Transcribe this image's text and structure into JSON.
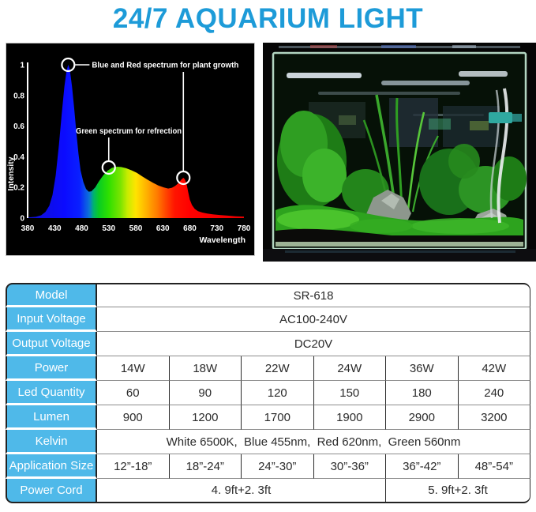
{
  "title": "24/7 AQUARIUM LIGHT",
  "colors": {
    "title_blue": "#1D9BD8",
    "label_blue": "#4FB9E9",
    "table_outer_border": "#222222",
    "table_row_line": "#8C8C8C",
    "chart_background": "#000000",
    "chart_text": "#FFFFFF"
  },
  "photo": {
    "name": "planted-aquarium-tank-photo"
  },
  "chart_data": {
    "type": "area",
    "title": "",
    "xlabel": "Wavelength",
    "ylabel": "Intensity",
    "xlim": [
      380,
      780
    ],
    "ylim": [
      0,
      1
    ],
    "x_ticks": [
      380,
      430,
      480,
      530,
      580,
      630,
      680,
      730,
      780
    ],
    "y_ticks": [
      "0",
      "0.2",
      "0.4",
      "0.6",
      "0.8",
      "1"
    ],
    "grid": false,
    "legend": false,
    "series": [
      {
        "name": "led-spectrum",
        "points": [
          [
            380,
            0.004
          ],
          [
            395,
            0.008
          ],
          [
            405,
            0.018
          ],
          [
            413,
            0.04
          ],
          [
            420,
            0.08
          ],
          [
            426,
            0.15
          ],
          [
            432,
            0.28
          ],
          [
            438,
            0.48
          ],
          [
            443,
            0.68
          ],
          [
            448,
            0.86
          ],
          [
            452,
            0.96
          ],
          [
            455,
            1.0
          ],
          [
            458,
            0.97
          ],
          [
            462,
            0.86
          ],
          [
            466,
            0.72
          ],
          [
            470,
            0.56
          ],
          [
            474,
            0.42
          ],
          [
            478,
            0.31
          ],
          [
            483,
            0.235
          ],
          [
            488,
            0.19
          ],
          [
            493,
            0.172
          ],
          [
            498,
            0.175
          ],
          [
            505,
            0.2
          ],
          [
            512,
            0.24
          ],
          [
            520,
            0.28
          ],
          [
            528,
            0.31
          ],
          [
            536,
            0.328
          ],
          [
            545,
            0.335
          ],
          [
            553,
            0.333
          ],
          [
            562,
            0.325
          ],
          [
            572,
            0.312
          ],
          [
            582,
            0.295
          ],
          [
            592,
            0.272
          ],
          [
            602,
            0.25
          ],
          [
            612,
            0.23
          ],
          [
            622,
            0.212
          ],
          [
            632,
            0.2
          ],
          [
            640,
            0.193
          ],
          [
            647,
            0.198
          ],
          [
            653,
            0.21
          ],
          [
            659,
            0.228
          ],
          [
            664,
            0.25
          ],
          [
            668,
            0.263
          ],
          [
            671,
            0.252
          ],
          [
            674,
            0.222
          ],
          [
            677,
            0.17
          ],
          [
            680,
            0.12
          ],
          [
            684,
            0.085
          ],
          [
            689,
            0.06
          ],
          [
            695,
            0.045
          ],
          [
            703,
            0.036
          ],
          [
            712,
            0.03
          ],
          [
            722,
            0.025
          ],
          [
            735,
            0.02
          ],
          [
            750,
            0.016
          ],
          [
            765,
            0.012
          ],
          [
            780,
            0.01
          ]
        ]
      }
    ],
    "spectrum_gradient_stops": [
      [
        "#1010CE",
        0
      ],
      [
        "#0B0BFF",
        0.17
      ],
      [
        "#0920FF",
        0.24
      ],
      [
        "#0C74D8",
        0.285
      ],
      [
        "#00B46E",
        0.305
      ],
      [
        "#0ACC22",
        0.33
      ],
      [
        "#2FE000",
        0.375
      ],
      [
        "#7CE400",
        0.43
      ],
      [
        "#C8EC00",
        0.462
      ],
      [
        "#FFE400",
        0.5
      ],
      [
        "#FFB000",
        0.55
      ],
      [
        "#FF7A00",
        0.6
      ],
      [
        "#FF4400",
        0.64
      ],
      [
        "#FF1400",
        0.68
      ],
      [
        "#FF0000",
        0.75
      ],
      [
        "#E80000",
        1
      ]
    ],
    "annotations": [
      {
        "text": "Blue and Red spectrum for plant growth",
        "anchors": [
          {
            "wavelength": 455,
            "intensity": 1.0
          },
          {
            "wavelength": 668,
            "intensity": 0.263
          }
        ]
      },
      {
        "text": "Green spectrum for refrection",
        "anchors": [
          {
            "wavelength": 530,
            "intensity": 0.33
          }
        ]
      }
    ]
  },
  "table": {
    "rows": [
      {
        "label": "Model",
        "cells": [
          {
            "text": "SR-618",
            "span": 6
          }
        ]
      },
      {
        "label": "Input Voltage",
        "cells": [
          {
            "text": "AC100-240V",
            "span": 6
          }
        ]
      },
      {
        "label": "Output Voltage",
        "cells": [
          {
            "text": "DC20V",
            "span": 6
          }
        ]
      },
      {
        "label": "Power",
        "cells": [
          {
            "text": "14W"
          },
          {
            "text": "18W"
          },
          {
            "text": "22W"
          },
          {
            "text": "24W"
          },
          {
            "text": "36W"
          },
          {
            "text": "42W"
          }
        ]
      },
      {
        "label": "Led Quantity",
        "cells": [
          {
            "text": "60"
          },
          {
            "text": "90"
          },
          {
            "text": "120"
          },
          {
            "text": "150"
          },
          {
            "text": "180"
          },
          {
            "text": "240"
          }
        ]
      },
      {
        "label": "Lumen",
        "cells": [
          {
            "text": "900"
          },
          {
            "text": "1200"
          },
          {
            "text": "1700"
          },
          {
            "text": "1900"
          },
          {
            "text": "2900"
          },
          {
            "text": "3200"
          }
        ]
      },
      {
        "label": "Kelvin",
        "cells": [
          {
            "text": "White 6500K,  Blue 455nm,  Red 620nm,  Green 560nm",
            "span": 6
          }
        ]
      },
      {
        "label": "Application Size",
        "cells": [
          {
            "text": "12”-18”"
          },
          {
            "text": "18”-24”"
          },
          {
            "text": "24”-30”"
          },
          {
            "text": "30”-36”"
          },
          {
            "text": "36”-42”"
          },
          {
            "text": "48”-54”"
          }
        ]
      },
      {
        "label": "Power Cord",
        "cells": [
          {
            "text": "4. 9ft+2. 3ft",
            "span": 4
          },
          {
            "text": "5. 9ft+2. 3ft",
            "span": 2
          }
        ]
      }
    ]
  }
}
